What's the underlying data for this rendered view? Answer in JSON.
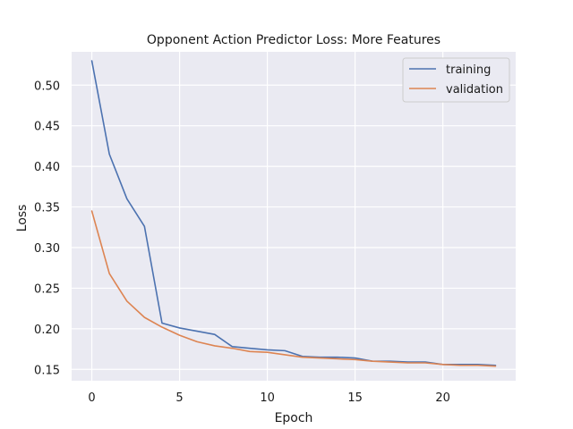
{
  "chart_data": {
    "type": "line",
    "title": "Opponent Action Predictor Loss: More Features",
    "xlabel": "Epoch",
    "ylabel": "Loss",
    "xlim": [
      -1.15,
      24.15
    ],
    "ylim": [
      0.136,
      0.541
    ],
    "xticks": [
      0,
      5,
      10,
      15,
      20
    ],
    "yticks": [
      0.15,
      0.2,
      0.25,
      0.3,
      0.35,
      0.4,
      0.45,
      0.5
    ],
    "ytick_labels": [
      "0.15",
      "0.20",
      "0.25",
      "0.30",
      "0.35",
      "0.40",
      "0.45",
      "0.50"
    ],
    "grid": true,
    "legend_position": "top-right",
    "x": [
      0,
      1,
      2,
      3,
      4,
      5,
      6,
      7,
      8,
      9,
      10,
      11,
      12,
      13,
      14,
      15,
      16,
      17,
      18,
      19,
      20,
      21,
      22,
      23
    ],
    "series": [
      {
        "name": "training",
        "color": "#4c72b0",
        "values": [
          0.53,
          0.415,
          0.36,
          0.326,
          0.207,
          0.201,
          0.197,
          0.193,
          0.178,
          0.176,
          0.174,
          0.173,
          0.166,
          0.165,
          0.165,
          0.164,
          0.16,
          0.16,
          0.159,
          0.159,
          0.156,
          0.156,
          0.156,
          0.155
        ]
      },
      {
        "name": "validation",
        "color": "#dd8452",
        "values": [
          0.345,
          0.268,
          0.234,
          0.214,
          0.202,
          0.192,
          0.184,
          0.179,
          0.176,
          0.172,
          0.171,
          0.168,
          0.165,
          0.164,
          0.163,
          0.162,
          0.16,
          0.159,
          0.158,
          0.158,
          0.156,
          0.155,
          0.155,
          0.154
        ]
      }
    ]
  }
}
